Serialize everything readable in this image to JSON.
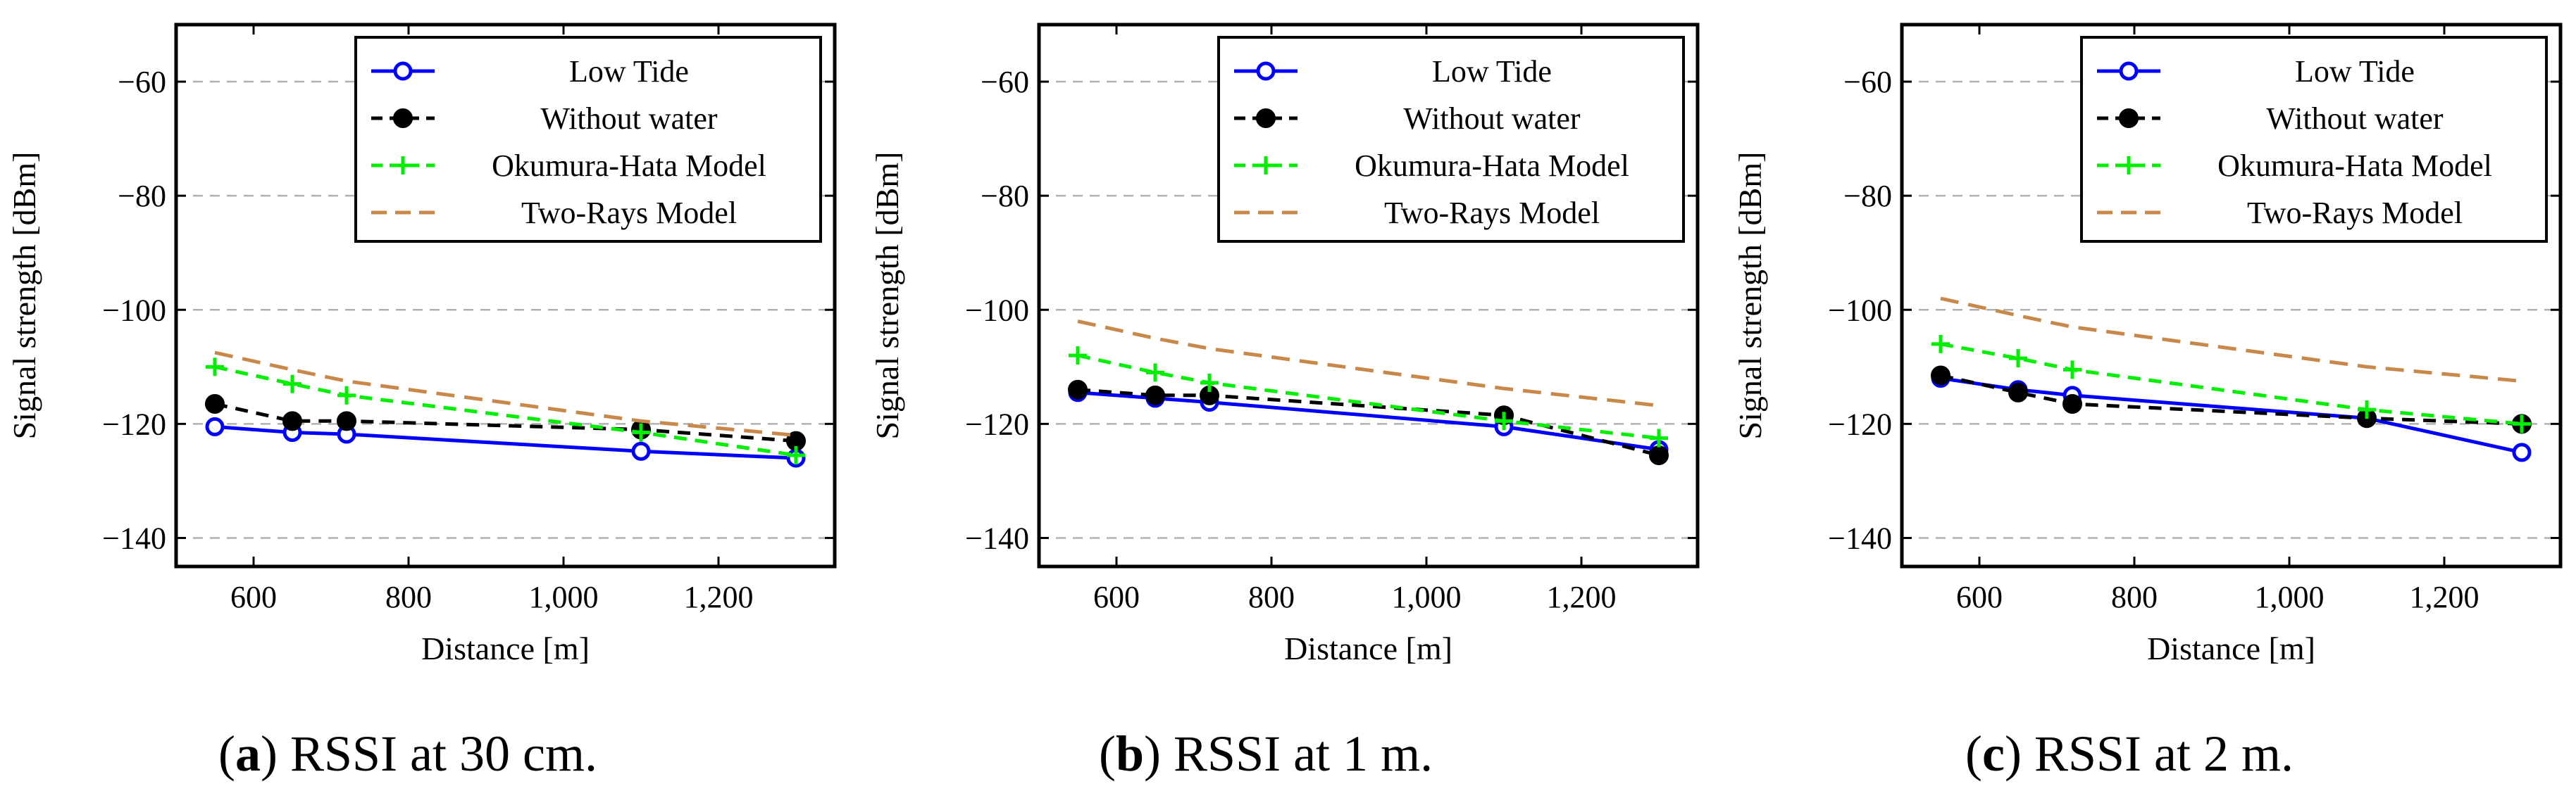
{
  "figure_colors": {
    "Low Tide": "#0000ff",
    "Without water": "#000000",
    "Okumura-Hata Model": "#00ee00",
    "Two-Rays Model": "#c8884a",
    "grid": "#b0b0b0"
  },
  "chart_data": [
    {
      "type": "line",
      "caption_letter": "a",
      "caption_text": "RSSI at 30 cm.",
      "xlabel": "Distance [m]",
      "ylabel": "Signal strength [dBm]",
      "xlim": [
        500,
        1350
      ],
      "ylim": [
        -145,
        -50
      ],
      "xticks": [
        600,
        800,
        1000,
        1200
      ],
      "xtick_labels": [
        "600",
        "800",
        "1,000",
        "1,200"
      ],
      "yticks": [
        -60,
        -80,
        -100,
        -120,
        -140
      ],
      "ytick_labels": [
        "−60",
        "−80",
        "−100",
        "−120",
        "−140"
      ],
      "grid": "horizontal dashed",
      "legend_position": "top-right",
      "series": [
        {
          "name": "Low Tide",
          "x": [
            550,
            650,
            720,
            1100,
            1300
          ],
          "values": [
            -120.5,
            -121.5,
            -121.8,
            -124.8,
            -126
          ]
        },
        {
          "name": "Without water",
          "x": [
            550,
            650,
            720,
            1100,
            1300
          ],
          "values": [
            -116.5,
            -119.5,
            -119.5,
            -121,
            -123
          ]
        },
        {
          "name": "Okumura-Hata Model",
          "x": [
            550,
            650,
            720,
            1100,
            1300
          ],
          "values": [
            -110,
            -113,
            -115,
            -121.5,
            -125.5
          ]
        },
        {
          "name": "Two-Rays Model",
          "x": [
            550,
            650,
            720,
            1100,
            1300
          ],
          "values": [
            -107.5,
            -110.5,
            -112.5,
            -119.5,
            -122
          ]
        }
      ]
    },
    {
      "type": "line",
      "caption_letter": "b",
      "caption_text": "RSSI at 1 m.",
      "xlabel": "Distance [m]",
      "ylabel": "Signal strength [dBm]",
      "xlim": [
        500,
        1350
      ],
      "ylim": [
        -145,
        -50
      ],
      "xticks": [
        600,
        800,
        1000,
        1200
      ],
      "xtick_labels": [
        "600",
        "800",
        "1,000",
        "1,200"
      ],
      "yticks": [
        -60,
        -80,
        -100,
        -120,
        -140
      ],
      "ytick_labels": [
        "−60",
        "−80",
        "−100",
        "−120",
        "−140"
      ],
      "grid": "horizontal dashed",
      "legend_position": "top-right",
      "series": [
        {
          "name": "Low Tide",
          "x": [
            550,
            650,
            720,
            1100,
            1300
          ],
          "values": [
            -114.5,
            -115.5,
            -116.2,
            -120.5,
            -124.5
          ]
        },
        {
          "name": "Without water",
          "x": [
            550,
            650,
            720,
            1100,
            1300
          ],
          "values": [
            -114,
            -115,
            -115,
            -118.5,
            -125.5
          ]
        },
        {
          "name": "Okumura-Hata Model",
          "x": [
            550,
            650,
            720,
            1100,
            1300
          ],
          "values": [
            -108,
            -111,
            -112.8,
            -119.5,
            -122.5
          ]
        },
        {
          "name": "Two-Rays Model",
          "x": [
            550,
            650,
            720,
            1100,
            1300
          ],
          "values": [
            -102,
            -105,
            -106.8,
            -113.8,
            -116.8
          ]
        }
      ]
    },
    {
      "type": "line",
      "caption_letter": "c",
      "caption_text": "RSSI at 2 m.",
      "xlabel": "Distance [m]",
      "ylabel": "Signal strength [dBm]",
      "xlim": [
        500,
        1350
      ],
      "ylim": [
        -145,
        -50
      ],
      "xticks": [
        600,
        800,
        1000,
        1200
      ],
      "xtick_labels": [
        "600",
        "800",
        "1,000",
        "1,200"
      ],
      "yticks": [
        -60,
        -80,
        -100,
        -120,
        -140
      ],
      "ytick_labels": [
        "−60",
        "−80",
        "−100",
        "−120",
        "−140"
      ],
      "grid": "horizontal dashed",
      "legend_position": "top-right",
      "series": [
        {
          "name": "Low Tide",
          "x": [
            550,
            650,
            720,
            1100,
            1300
          ],
          "values": [
            -112,
            -114,
            -115,
            -119,
            -125
          ]
        },
        {
          "name": "Without water",
          "x": [
            550,
            650,
            720,
            1100,
            1300
          ],
          "values": [
            -111.5,
            -114.5,
            -116.5,
            -119,
            -120
          ]
        },
        {
          "name": "Okumura-Hata Model",
          "x": [
            550,
            650,
            720,
            1100,
            1300
          ],
          "values": [
            -106,
            -108.5,
            -110.5,
            -117.5,
            -120
          ]
        },
        {
          "name": "Two-Rays Model",
          "x": [
            550,
            650,
            720,
            1100,
            1300
          ],
          "values": [
            -98,
            -101,
            -103,
            -110,
            -112.5
          ]
        }
      ]
    }
  ]
}
